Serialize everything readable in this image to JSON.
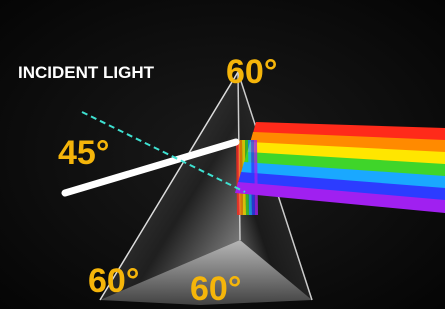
{
  "labels": {
    "incident": "INCIDENT LIGHT",
    "apex_angle": "60°",
    "incidence_angle": "45°",
    "base_left_angle": "60°",
    "base_right_angle": "60°"
  }
}
